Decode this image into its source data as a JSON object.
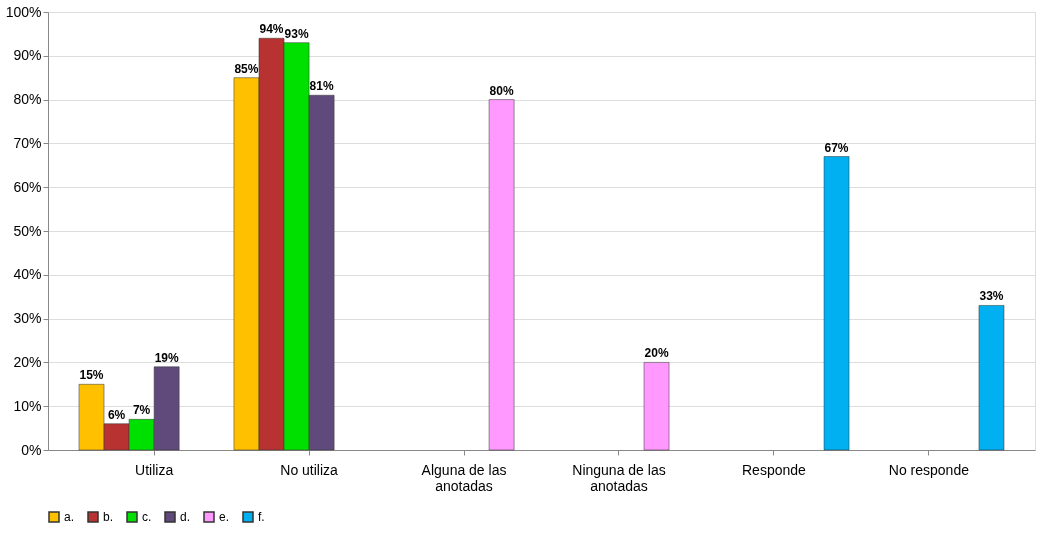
{
  "chart_data": {
    "type": "bar",
    "categories": [
      "Utiliza",
      "No utiliza",
      "Alguna de las\nanotadas",
      "Ninguna de las\nanotadas",
      "Responde",
      "No responde"
    ],
    "series": [
      {
        "name": "a.",
        "color": "#ffc000",
        "values": [
          15,
          85,
          null,
          null,
          null,
          null
        ],
        "value_labels": [
          "15%",
          "85%",
          null,
          null,
          null,
          null
        ]
      },
      {
        "name": "b.",
        "color": "#b83232",
        "values": [
          6,
          94,
          null,
          null,
          null,
          null
        ],
        "value_labels": [
          "6%",
          "94%",
          null,
          null,
          null,
          null
        ]
      },
      {
        "name": "c.",
        "color": "#00e000",
        "values": [
          7,
          93,
          null,
          null,
          null,
          null
        ],
        "value_labels": [
          "7%",
          "93%",
          null,
          null,
          null,
          null
        ]
      },
      {
        "name": "d.",
        "color": "#604a7b",
        "values": [
          19,
          81,
          null,
          null,
          null,
          null
        ],
        "value_labels": [
          "19%",
          "81%",
          null,
          null,
          null,
          null
        ]
      },
      {
        "name": "e.",
        "color": "#ff99ff",
        "values": [
          null,
          null,
          80,
          20,
          null,
          null
        ],
        "value_labels": [
          null,
          null,
          "80%",
          "20%",
          null,
          null
        ]
      },
      {
        "name": "f.",
        "color": "#00b0f0",
        "values": [
          null,
          null,
          null,
          null,
          67,
          33
        ],
        "value_labels": [
          null,
          null,
          null,
          null,
          "67%",
          "33%"
        ]
      }
    ],
    "ylim": [
      0,
      100
    ],
    "yticks": [
      {
        "value": 0,
        "label": "0%"
      },
      {
        "value": 10,
        "label": "10%"
      },
      {
        "value": 20,
        "label": "20%"
      },
      {
        "value": 30,
        "label": "30%"
      },
      {
        "value": 40,
        "label": "40%"
      },
      {
        "value": 50,
        "label": "50%"
      },
      {
        "value": 60,
        "label": "60%"
      },
      {
        "value": 70,
        "label": "70%"
      },
      {
        "value": 80,
        "label": "80%"
      },
      {
        "value": 90,
        "label": "90%"
      },
      {
        "value": 100,
        "label": "100%"
      }
    ],
    "grid": "y",
    "legend": "bottom"
  }
}
